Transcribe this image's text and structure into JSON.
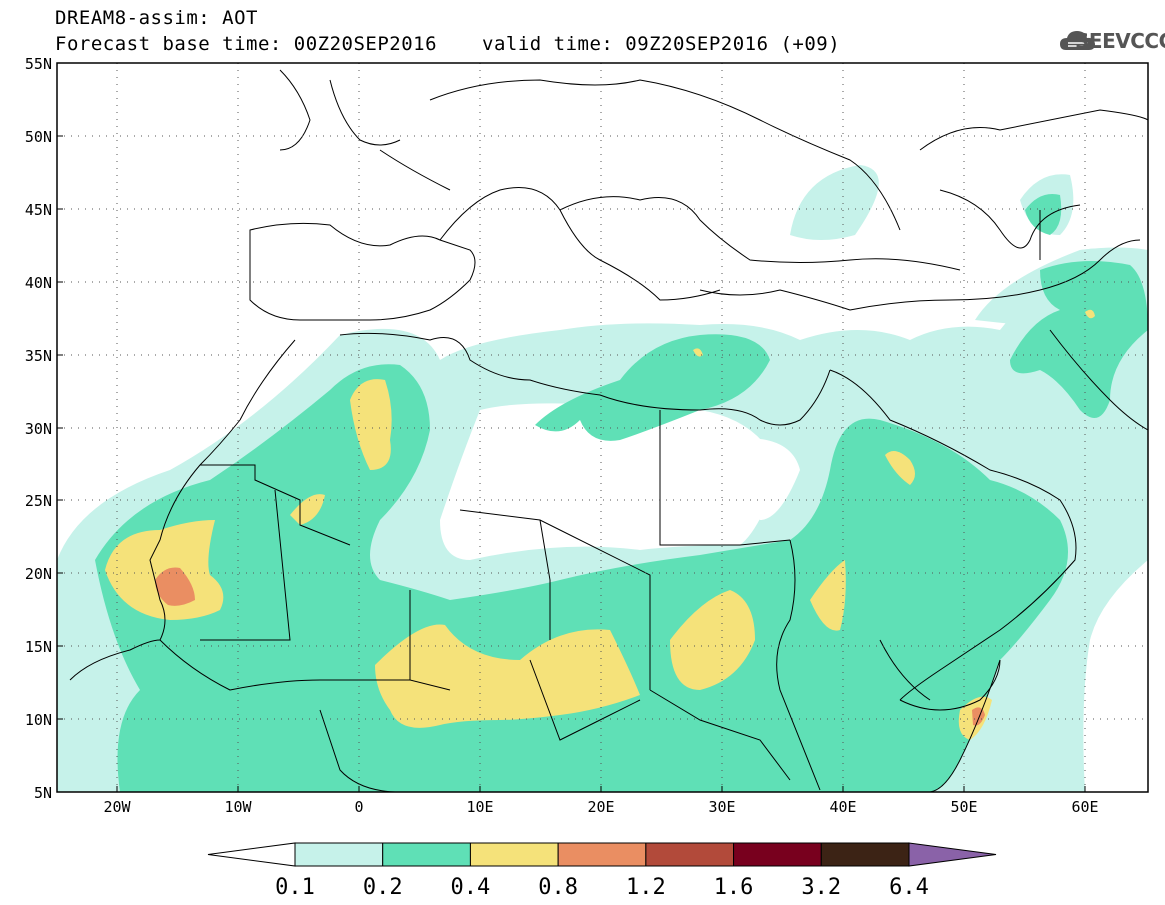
{
  "header": {
    "line1": "DREAM8-assim: AOT",
    "line2_left": "Forecast base time: 00Z20SEP2016",
    "line2_right": "valid time: 09Z20SEP2016 (+09)",
    "logo_text": "SEEVCCC"
  },
  "axes": {
    "lat_labels": [
      "55N",
      "50N",
      "45N",
      "40N",
      "35N",
      "30N",
      "25N",
      "20N",
      "15N",
      "10N",
      "5N"
    ],
    "lon_labels": [
      "20W",
      "10W",
      "0",
      "10E",
      "20E",
      "30E",
      "40E",
      "50E",
      "60E"
    ]
  },
  "colorbar": {
    "colors": [
      "#ffffff",
      "#c6f2ea",
      "#5fe0b6",
      "#f5e27a",
      "#ea8e62",
      "#b24a3a",
      "#78001e",
      "#3c2315",
      "#8a62a8"
    ],
    "labels": [
      "0.1",
      "0.2",
      "0.4",
      "0.8",
      "1.2",
      "1.6",
      "3.2",
      "6.4"
    ]
  },
  "icons": {
    "logo": "cloud-logo-icon"
  }
}
